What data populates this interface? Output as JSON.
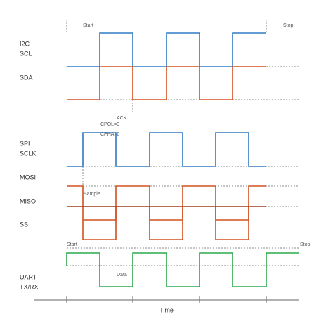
{
  "diagram": {
    "i2c": {
      "title": "I2C",
      "clock": "SCL",
      "data": "SDA",
      "start": "Start",
      "stop": "Stop",
      "ack": "ACK"
    },
    "spi": {
      "title": "SPI",
      "clock": "SCLK",
      "mosi": "MOSI",
      "miso": "MISO",
      "ss": "SS",
      "cpol": "CPOL=0",
      "cpha": "CPHA=0",
      "sample": "Sample"
    },
    "uart": {
      "title": "UART",
      "line": "TX/RX",
      "start": "Start",
      "stop": "Stop",
      "data": "Data"
    },
    "axis_label": "Time"
  }
}
